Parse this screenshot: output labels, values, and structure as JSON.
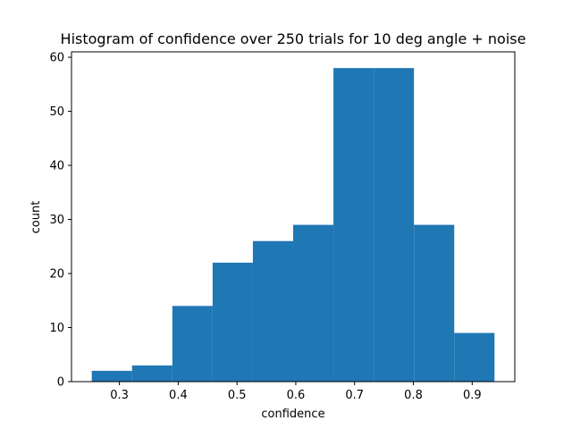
{
  "chart_data": {
    "type": "bar",
    "title": "Histogram of confidence over 250 trials for 10 deg angle + noise",
    "xlabel": "confidence",
    "ylabel": "count",
    "bin_edges": [
      0.253,
      0.3215,
      0.39,
      0.4585,
      0.527,
      0.5955,
      0.664,
      0.7325,
      0.801,
      0.8695,
      0.938
    ],
    "values": [
      2,
      3,
      14,
      22,
      26,
      29,
      58,
      58,
      29,
      9
    ],
    "xlim": [
      0.2185,
      0.9725
    ],
    "ylim": [
      0,
      61
    ],
    "xticks": [
      0.3,
      0.4,
      0.5,
      0.6,
      0.7,
      0.8,
      0.9
    ],
    "yticks": [
      0,
      10,
      20,
      30,
      40,
      50,
      60
    ],
    "grid": false,
    "bar_color": "#1f77b4"
  }
}
